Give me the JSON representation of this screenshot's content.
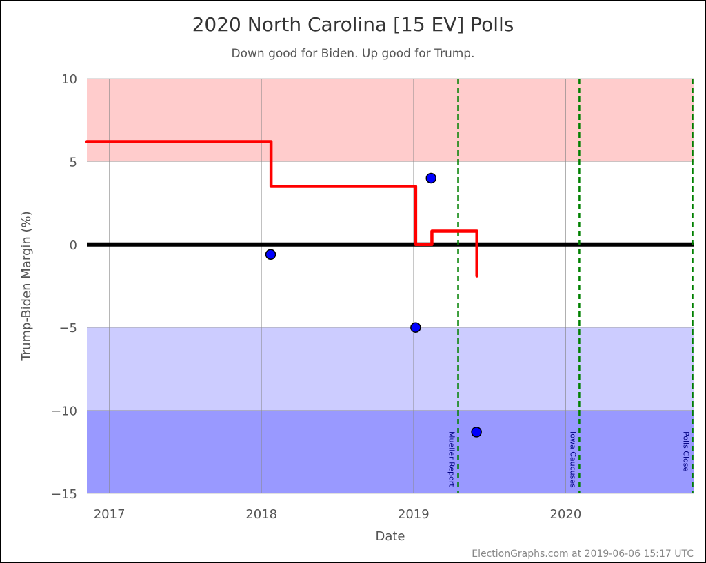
{
  "chart_data": {
    "type": "line",
    "title": "2020 North Carolina [15 EV] Polls",
    "subtitle": "Down good for Biden. Up good for Trump.",
    "xlabel": "Date",
    "ylabel": "Trump-Biden Margin (%)",
    "xlim": [
      "2016-11-08",
      "2020-11-03"
    ],
    "ylim": [
      -15,
      10
    ],
    "x_ticks": [
      "2017",
      "2018",
      "2019",
      "2020"
    ],
    "y_ticks": [
      10,
      5,
      0,
      -5,
      -10,
      -15
    ],
    "y_tick_labels": [
      "10",
      "5",
      "0",
      "−5",
      "−10",
      "−15"
    ],
    "grid": true,
    "bands": [
      {
        "from": 5,
        "to": 10,
        "color": "#ffcccc"
      },
      {
        "from": -10,
        "to": -5,
        "color": "#ccccff"
      },
      {
        "from": -15,
        "to": -10,
        "color": "#9999ff"
      }
    ],
    "zero_line_color": "#000000",
    "average": {
      "color": "#ff0000",
      "points": [
        {
          "x": "2016-11-08",
          "y": 6.2
        },
        {
          "x": "2018-01-24",
          "y": 6.2
        },
        {
          "x": "2018-01-24",
          "y": 3.5
        },
        {
          "x": "2019-01-06",
          "y": 3.5
        },
        {
          "x": "2019-01-06",
          "y": 0.0
        },
        {
          "x": "2019-02-14",
          "y": 0.0
        },
        {
          "x": "2019-02-14",
          "y": 0.8
        },
        {
          "x": "2019-06-02",
          "y": 0.8
        },
        {
          "x": "2019-06-02",
          "y": -1.9
        }
      ]
    },
    "polls": {
      "color": "#0000ff",
      "points": [
        {
          "x": "2018-01-23",
          "y": -0.6
        },
        {
          "x": "2019-01-06",
          "y": -5
        },
        {
          "x": "2019-02-12",
          "y": 4
        },
        {
          "x": "2019-06-01",
          "y": -11.3
        }
      ]
    },
    "events": [
      {
        "x": "2019-04-18",
        "label": "Mueller Report"
      },
      {
        "x": "2020-02-03",
        "label": "Iowa Caucuses"
      },
      {
        "x": "2020-11-03",
        "label": "Polls Close"
      }
    ],
    "event_color": "#008000"
  },
  "footer": "ElectionGraphs.com at 2019-06-06 15:17 UTC"
}
